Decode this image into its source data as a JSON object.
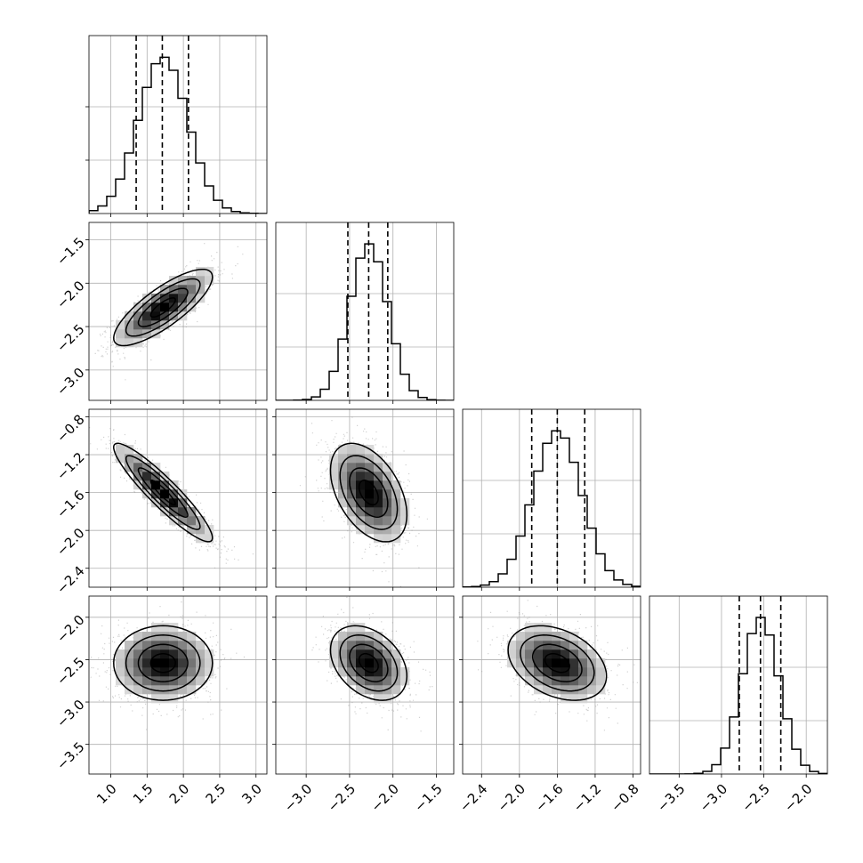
{
  "chart_data": {
    "type": "corner",
    "n_params": 4,
    "grid": true,
    "quantile_line_style": "dashed",
    "axes": [
      {
        "range": [
          0.7,
          3.15
        ],
        "ticks": [
          1.0,
          1.5,
          2.0,
          2.5,
          3.0
        ],
        "tick_labels": [
          "1.0",
          "1.5",
          "2.0",
          "2.5",
          "3.0"
        ]
      },
      {
        "range": [
          -3.35,
          -1.3
        ],
        "ticks": [
          -3.0,
          -2.5,
          -2.0,
          -1.5
        ],
        "tick_labels": [
          "−3.0",
          "−2.5",
          "−2.0",
          "−1.5"
        ]
      },
      {
        "range": [
          -2.6,
          -0.72
        ],
        "ticks": [
          -2.4,
          -2.0,
          -1.6,
          -1.2,
          -0.8
        ],
        "tick_labels": [
          "−2.4",
          "−2.0",
          "−1.6",
          "−1.2",
          "−0.8"
        ]
      },
      {
        "range": [
          -3.85,
          -1.75
        ],
        "ticks": [
          -3.5,
          -3.0,
          -2.5,
          -2.0
        ],
        "tick_labels": [
          "−3.5",
          "−3.0",
          "−2.5",
          "−2.0"
        ]
      }
    ],
    "marginals": [
      {
        "param": 0,
        "mean": 1.72,
        "sigma": 0.34,
        "quantiles": [
          1.35,
          1.71,
          2.07
        ]
      },
      {
        "param": 1,
        "mean": -2.28,
        "sigma": 0.22,
        "quantiles": [
          -2.52,
          -2.28,
          -2.06
        ]
      },
      {
        "param": 2,
        "mean": -1.6,
        "sigma": 0.26,
        "quantiles": [
          -1.87,
          -1.6,
          -1.31
        ]
      },
      {
        "param": 3,
        "mean": -2.54,
        "sigma": 0.22,
        "quantiles": [
          -2.79,
          -2.54,
          -2.3
        ]
      }
    ],
    "correlations": [
      {
        "pair": [
          1,
          0
        ],
        "rho": 0.8
      },
      {
        "pair": [
          2,
          0
        ],
        "rho": -0.92
      },
      {
        "pair": [
          2,
          1
        ],
        "rho": -0.45
      },
      {
        "pair": [
          3,
          0
        ],
        "rho": 0.0
      },
      {
        "pair": [
          3,
          1
        ],
        "rho": -0.35
      },
      {
        "pair": [
          3,
          2
        ],
        "rho": -0.35
      }
    ],
    "contour_levels_sigma": [
      0.5,
      1.0,
      1.5,
      2.0
    ]
  }
}
